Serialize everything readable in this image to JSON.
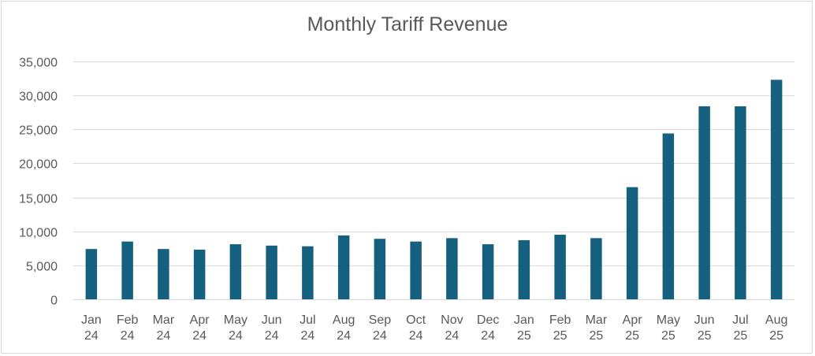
{
  "chart_data": {
    "type": "bar",
    "title": "Monthly Tariff Revenue",
    "xlabel": "",
    "ylabel": "",
    "categories": [
      [
        "Jan",
        "24"
      ],
      [
        "Feb",
        "24"
      ],
      [
        "Mar",
        "24"
      ],
      [
        "Apr",
        "24"
      ],
      [
        "May",
        "24"
      ],
      [
        "Jun",
        "24"
      ],
      [
        "Jul",
        "24"
      ],
      [
        "Aug",
        "24"
      ],
      [
        "Sep",
        "24"
      ],
      [
        "Oct",
        "24"
      ],
      [
        "Nov",
        "24"
      ],
      [
        "Dec",
        "24"
      ],
      [
        "Jan",
        "25"
      ],
      [
        "Feb",
        "25"
      ],
      [
        "Mar",
        "25"
      ],
      [
        "Apr",
        "25"
      ],
      [
        "May",
        "25"
      ],
      [
        "Jun",
        "25"
      ],
      [
        "Jul",
        "25"
      ],
      [
        "Aug",
        "25"
      ]
    ],
    "values": [
      7400,
      8500,
      7400,
      7300,
      8100,
      7900,
      7800,
      9400,
      8900,
      8500,
      9000,
      8100,
      8700,
      9500,
      9000,
      16500,
      24400,
      28400,
      28400,
      32300
    ],
    "ylim": [
      0,
      35000
    ],
    "yticks": [
      0,
      5000,
      10000,
      15000,
      20000,
      25000,
      30000,
      35000
    ],
    "ytick_labels": [
      "0",
      "5,000",
      "10,000",
      "15,000",
      "20,000",
      "25,000",
      "30,000",
      "35,000"
    ],
    "grid": true,
    "legend": "none",
    "bar_color": "#15607f",
    "grid_color": "#d9d9d9"
  }
}
